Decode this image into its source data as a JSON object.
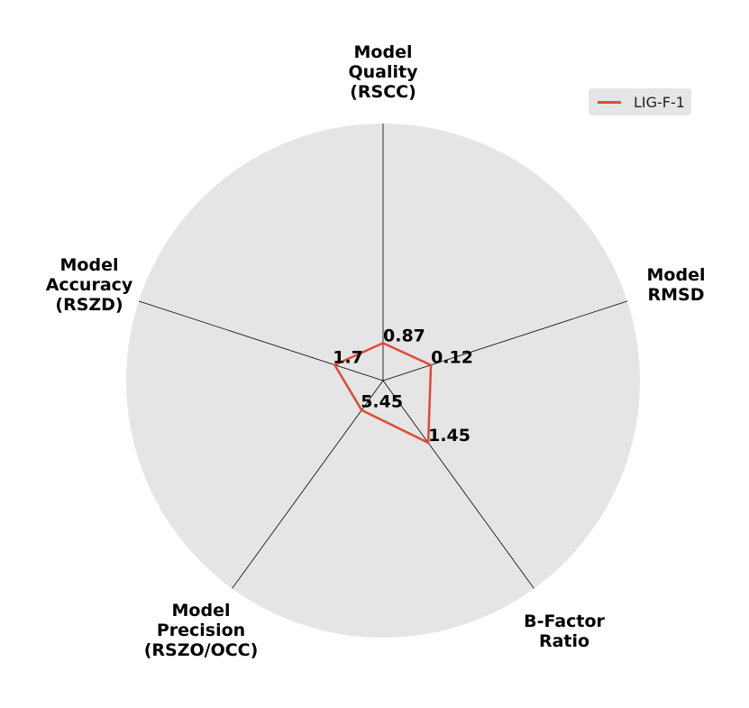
{
  "chart_data": {
    "type": "radar",
    "categories": [
      "Model\nQuality\n(RSCC)",
      "Model\nRMSD",
      "B-Factor\nRatio",
      "Model\nPrecision\n(RSZO/OCC)",
      "Model\nAccuracy\n(RSZD)"
    ],
    "series": [
      {
        "name": "LIG-F-1",
        "values": [
          0.87,
          0.12,
          1.45,
          5.45,
          1.7
        ],
        "display_labels": [
          "0.87",
          "0.12",
          "1.45",
          "5.45",
          "1.7"
        ],
        "plot_radius_fraction": [
          0.146,
          0.196,
          0.299,
          0.142,
          0.198
        ]
      }
    ],
    "colors": {
      "series": "#e24a33",
      "background": "#e5e5e5",
      "spokes": "#000000"
    },
    "grid": false,
    "legend": {
      "placement": "top-right"
    }
  }
}
